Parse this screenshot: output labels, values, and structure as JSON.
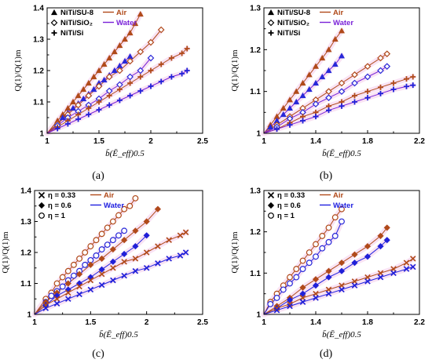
{
  "chart_data": [
    {
      "id": "a",
      "type": "scatter",
      "caption": "(a)",
      "ylabel": "Q(1)/Q(1)m",
      "xlabel": "b̄(Ē_eff)0.5",
      "xlim": [
        1,
        2.5
      ],
      "ylim": [
        1,
        1.4
      ],
      "xticks": [
        "1",
        "1.5",
        "2",
        "2.5"
      ],
      "yticks": [
        "1",
        "1.1",
        "1.2",
        "1.3",
        "1.4"
      ],
      "grid": false,
      "legend": {
        "placement": "top-left",
        "markers": [
          {
            "marker": "triangle",
            "label": "NiTi/SU-8"
          },
          {
            "marker": "diamond",
            "label": "NiTi/SiO₂"
          },
          {
            "marker": "plus",
            "label": "NiTi/Si"
          }
        ],
        "lines": [
          {
            "color": "#B04A1A",
            "label": "Air"
          },
          {
            "color": "#7A22D8",
            "label": "Water"
          }
        ]
      },
      "series": [
        {
          "marker": "triangle",
          "medium": "Air",
          "x": [
            1.1,
            1.15,
            1.2,
            1.25,
            1.3,
            1.35,
            1.4,
            1.45,
            1.5,
            1.55,
            1.6,
            1.65,
            1.7,
            1.75,
            1.8,
            1.85,
            1.9
          ],
          "y": [
            1.04,
            1.06,
            1.08,
            1.1,
            1.12,
            1.14,
            1.16,
            1.18,
            1.2,
            1.22,
            1.24,
            1.26,
            1.28,
            1.3,
            1.32,
            1.35,
            1.38
          ]
        },
        {
          "marker": "triangle",
          "medium": "Water",
          "x": [
            1.1,
            1.15,
            1.2,
            1.25,
            1.3,
            1.35,
            1.4,
            1.45,
            1.5,
            1.55,
            1.6,
            1.65,
            1.7,
            1.75,
            1.8
          ],
          "y": [
            1.03,
            1.05,
            1.065,
            1.08,
            1.095,
            1.11,
            1.125,
            1.14,
            1.16,
            1.17,
            1.185,
            1.2,
            1.215,
            1.23,
            1.245
          ]
        },
        {
          "marker": "diamond",
          "medium": "Air",
          "x": [
            1.1,
            1.2,
            1.3,
            1.4,
            1.5,
            1.6,
            1.7,
            1.8,
            1.9,
            2.0,
            2.1
          ],
          "y": [
            1.03,
            1.06,
            1.09,
            1.12,
            1.15,
            1.18,
            1.2,
            1.23,
            1.26,
            1.29,
            1.33
          ]
        },
        {
          "marker": "diamond",
          "medium": "Water",
          "x": [
            1.1,
            1.2,
            1.3,
            1.4,
            1.5,
            1.6,
            1.7,
            1.8,
            1.9,
            2.0
          ],
          "y": [
            1.025,
            1.05,
            1.07,
            1.09,
            1.11,
            1.135,
            1.155,
            1.18,
            1.2,
            1.24
          ]
        },
        {
          "marker": "plus",
          "medium": "Air",
          "x": [
            1.1,
            1.2,
            1.3,
            1.4,
            1.5,
            1.6,
            1.7,
            1.8,
            1.9,
            2.0,
            2.1,
            2.2,
            2.3,
            2.35
          ],
          "y": [
            1.02,
            1.04,
            1.06,
            1.08,
            1.1,
            1.12,
            1.14,
            1.16,
            1.18,
            1.2,
            1.22,
            1.24,
            1.255,
            1.27
          ]
        },
        {
          "marker": "plus",
          "medium": "Water",
          "x": [
            1.1,
            1.2,
            1.3,
            1.4,
            1.5,
            1.6,
            1.7,
            1.8,
            1.9,
            2.0,
            2.1,
            2.2,
            2.3,
            2.35
          ],
          "y": [
            1.015,
            1.03,
            1.045,
            1.06,
            1.075,
            1.09,
            1.105,
            1.12,
            1.135,
            1.15,
            1.165,
            1.18,
            1.19,
            1.2
          ]
        }
      ]
    },
    {
      "id": "b",
      "type": "scatter",
      "caption": "(b)",
      "ylabel": "Q(1)/Q(1)m",
      "xlabel": "b̄(Ē_eff)0.5",
      "xlim": [
        1,
        2.2
      ],
      "ylim": [
        1,
        1.3
      ],
      "xticks": [
        "1",
        "1.4",
        "1.8",
        "2.2"
      ],
      "yticks": [
        "1",
        "1.1",
        "1.2",
        "1.3"
      ],
      "grid": false,
      "legend": {
        "placement": "top-left",
        "markers": [
          {
            "marker": "triangle",
            "label": "NiTi/SU-8"
          },
          {
            "marker": "diamond",
            "label": "NiTi/SiO₂"
          },
          {
            "marker": "plus",
            "label": "NiTi/Si"
          }
        ],
        "lines": [
          {
            "color": "#B04A1A",
            "label": "Air"
          },
          {
            "color": "#7A22D8",
            "label": "Water"
          }
        ]
      },
      "series": [
        {
          "marker": "triangle",
          "medium": "Air",
          "x": [
            1.05,
            1.1,
            1.15,
            1.2,
            1.25,
            1.3,
            1.35,
            1.4,
            1.45,
            1.5,
            1.55,
            1.6
          ],
          "y": [
            1.02,
            1.04,
            1.06,
            1.08,
            1.1,
            1.12,
            1.14,
            1.16,
            1.18,
            1.2,
            1.225,
            1.245
          ]
        },
        {
          "marker": "triangle",
          "medium": "Water",
          "x": [
            1.05,
            1.1,
            1.15,
            1.2,
            1.25,
            1.3,
            1.35,
            1.4,
            1.45,
            1.5,
            1.55,
            1.6
          ],
          "y": [
            1.015,
            1.03,
            1.045,
            1.06,
            1.075,
            1.09,
            1.105,
            1.12,
            1.135,
            1.15,
            1.165,
            1.185
          ]
        },
        {
          "marker": "diamond",
          "medium": "Air",
          "x": [
            1.1,
            1.2,
            1.3,
            1.4,
            1.5,
            1.6,
            1.7,
            1.8,
            1.9,
            1.95
          ],
          "y": [
            1.02,
            1.04,
            1.06,
            1.08,
            1.1,
            1.12,
            1.14,
            1.16,
            1.18,
            1.19
          ]
        },
        {
          "marker": "diamond",
          "medium": "Water",
          "x": [
            1.1,
            1.2,
            1.3,
            1.4,
            1.5,
            1.6,
            1.7,
            1.8,
            1.9,
            1.95
          ],
          "y": [
            1.015,
            1.035,
            1.05,
            1.07,
            1.085,
            1.1,
            1.12,
            1.135,
            1.15,
            1.16
          ]
        },
        {
          "marker": "plus",
          "medium": "Air",
          "x": [
            1.1,
            1.2,
            1.3,
            1.4,
            1.5,
            1.6,
            1.7,
            1.8,
            1.9,
            2.0,
            2.1,
            2.15
          ],
          "y": [
            1.01,
            1.025,
            1.04,
            1.05,
            1.065,
            1.075,
            1.09,
            1.1,
            1.11,
            1.12,
            1.13,
            1.135
          ]
        },
        {
          "marker": "plus",
          "medium": "Water",
          "x": [
            1.1,
            1.2,
            1.3,
            1.4,
            1.5,
            1.6,
            1.7,
            1.8,
            1.9,
            2.0,
            2.1,
            2.15
          ],
          "y": [
            1.01,
            1.02,
            1.03,
            1.04,
            1.055,
            1.065,
            1.075,
            1.085,
            1.095,
            1.105,
            1.112,
            1.115
          ]
        }
      ]
    },
    {
      "id": "c",
      "type": "scatter",
      "caption": "(c)",
      "ylabel": "Q(1)/Q(1)m",
      "xlabel": "b̄(Ē_eff)0.5",
      "xlim": [
        1,
        2.5
      ],
      "ylim": [
        1,
        1.4
      ],
      "xticks": [
        "1",
        "1.5",
        "2",
        "2.5"
      ],
      "yticks": [
        "1",
        "1.1",
        "1.2",
        "1.3",
        "1.4"
      ],
      "grid": false,
      "legend": {
        "placement": "top-left",
        "markers": [
          {
            "marker": "cross",
            "label": "η = 0.33"
          },
          {
            "marker": "diamond-filled",
            "label": "η = 0.6"
          },
          {
            "marker": "circle",
            "label": "η = 1"
          }
        ],
        "lines": [
          {
            "color": "#B04A1A",
            "label": "Air"
          },
          {
            "color": "#2020E0",
            "label": "Water"
          }
        ]
      },
      "series": [
        {
          "marker": "circle",
          "medium": "Air",
          "x": [
            1.1,
            1.15,
            1.2,
            1.25,
            1.3,
            1.35,
            1.4,
            1.45,
            1.5,
            1.55,
            1.6,
            1.65,
            1.7,
            1.75,
            1.8,
            1.85,
            1.9
          ],
          "y": [
            1.05,
            1.07,
            1.1,
            1.12,
            1.14,
            1.16,
            1.18,
            1.2,
            1.22,
            1.24,
            1.26,
            1.28,
            1.3,
            1.32,
            1.34,
            1.35,
            1.375
          ]
        },
        {
          "marker": "circle",
          "medium": "Water",
          "x": [
            1.1,
            1.15,
            1.2,
            1.25,
            1.3,
            1.35,
            1.4,
            1.45,
            1.5,
            1.55,
            1.6,
            1.65,
            1.7,
            1.75,
            1.8
          ],
          "y": [
            1.04,
            1.06,
            1.075,
            1.09,
            1.11,
            1.125,
            1.14,
            1.16,
            1.175,
            1.19,
            1.21,
            1.225,
            1.24,
            1.255,
            1.27
          ]
        },
        {
          "marker": "diamond-filled",
          "medium": "Air",
          "x": [
            1.1,
            1.2,
            1.3,
            1.4,
            1.5,
            1.6,
            1.7,
            1.8,
            1.9,
            2.0,
            2.1
          ],
          "y": [
            1.04,
            1.07,
            1.1,
            1.13,
            1.16,
            1.18,
            1.21,
            1.24,
            1.27,
            1.3,
            1.34
          ]
        },
        {
          "marker": "diamond-filled",
          "medium": "Water",
          "x": [
            1.1,
            1.2,
            1.3,
            1.4,
            1.5,
            1.6,
            1.7,
            1.8,
            1.9,
            2.0
          ],
          "y": [
            1.03,
            1.06,
            1.08,
            1.1,
            1.12,
            1.145,
            1.17,
            1.195,
            1.22,
            1.255
          ]
        },
        {
          "marker": "cross",
          "medium": "Air",
          "x": [
            1.1,
            1.2,
            1.3,
            1.4,
            1.5,
            1.6,
            1.7,
            1.8,
            1.9,
            2.0,
            2.1,
            2.2,
            2.3,
            2.35
          ],
          "y": [
            1.03,
            1.05,
            1.07,
            1.09,
            1.11,
            1.13,
            1.15,
            1.17,
            1.18,
            1.2,
            1.22,
            1.24,
            1.255,
            1.265
          ]
        },
        {
          "marker": "cross",
          "medium": "Water",
          "x": [
            1.1,
            1.2,
            1.3,
            1.4,
            1.5,
            1.6,
            1.7,
            1.8,
            1.9,
            2.0,
            2.1,
            2.2,
            2.3,
            2.35
          ],
          "y": [
            1.02,
            1.035,
            1.05,
            1.065,
            1.08,
            1.095,
            1.11,
            1.125,
            1.14,
            1.15,
            1.165,
            1.18,
            1.19,
            1.2
          ]
        }
      ]
    },
    {
      "id": "d",
      "type": "scatter",
      "caption": "(d)",
      "ylabel": "Q(1)/Q(1)m",
      "xlabel": "b̄(Ē_eff)0.5",
      "xlim": [
        1,
        2.2
      ],
      "ylim": [
        1,
        1.3
      ],
      "xticks": [
        "1",
        "1.4",
        "1.8",
        "2.2"
      ],
      "yticks": [
        "1",
        "1.1",
        "1.2",
        "1.3"
      ],
      "grid": false,
      "legend": {
        "placement": "top-left",
        "markers": [
          {
            "marker": "cross",
            "label": "η = 0.33"
          },
          {
            "marker": "diamond-filled",
            "label": "η = 0.6"
          },
          {
            "marker": "circle",
            "label": "η = 1"
          }
        ],
        "lines": [
          {
            "color": "#B04A1A",
            "label": "Air"
          },
          {
            "color": "#2020E0",
            "label": "Water"
          }
        ]
      },
      "series": [
        {
          "marker": "circle",
          "medium": "Air",
          "x": [
            1.05,
            1.1,
            1.15,
            1.2,
            1.25,
            1.3,
            1.35,
            1.4,
            1.45,
            1.5,
            1.55,
            1.6
          ],
          "y": [
            1.03,
            1.05,
            1.07,
            1.09,
            1.11,
            1.13,
            1.15,
            1.17,
            1.19,
            1.21,
            1.235,
            1.255
          ]
        },
        {
          "marker": "circle",
          "medium": "Water",
          "x": [
            1.05,
            1.1,
            1.15,
            1.2,
            1.25,
            1.3,
            1.35,
            1.4,
            1.45,
            1.5,
            1.55,
            1.6
          ],
          "y": [
            1.025,
            1.04,
            1.06,
            1.075,
            1.09,
            1.11,
            1.125,
            1.14,
            1.16,
            1.175,
            1.19,
            1.225
          ]
        },
        {
          "marker": "diamond-filled",
          "medium": "Air",
          "x": [
            1.1,
            1.2,
            1.3,
            1.4,
            1.5,
            1.6,
            1.7,
            1.8,
            1.9,
            1.95
          ],
          "y": [
            1.02,
            1.04,
            1.065,
            1.085,
            1.105,
            1.125,
            1.145,
            1.165,
            1.19,
            1.21
          ]
        },
        {
          "marker": "diamond-filled",
          "medium": "Water",
          "x": [
            1.1,
            1.2,
            1.3,
            1.4,
            1.5,
            1.6,
            1.7,
            1.8,
            1.9,
            1.95
          ],
          "y": [
            1.015,
            1.035,
            1.05,
            1.07,
            1.09,
            1.105,
            1.125,
            1.14,
            1.165,
            1.18
          ]
        },
        {
          "marker": "cross",
          "medium": "Air",
          "x": [
            1.1,
            1.2,
            1.3,
            1.4,
            1.5,
            1.6,
            1.7,
            1.8,
            1.9,
            2.0,
            2.1,
            2.15
          ],
          "y": [
            1.015,
            1.025,
            1.04,
            1.05,
            1.06,
            1.07,
            1.08,
            1.09,
            1.1,
            1.11,
            1.125,
            1.135
          ]
        },
        {
          "marker": "cross",
          "medium": "Water",
          "x": [
            1.1,
            1.2,
            1.3,
            1.4,
            1.5,
            1.6,
            1.7,
            1.8,
            1.9,
            2.0,
            2.1,
            2.15
          ],
          "y": [
            1.01,
            1.02,
            1.03,
            1.04,
            1.05,
            1.06,
            1.07,
            1.08,
            1.09,
            1.1,
            1.11,
            1.115
          ]
        }
      ]
    }
  ]
}
